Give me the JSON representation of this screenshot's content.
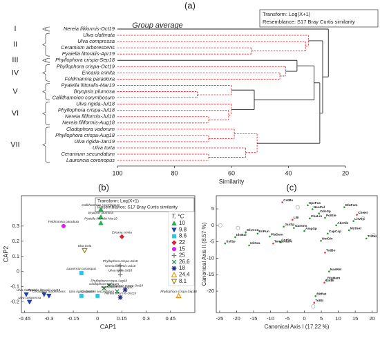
{
  "chart_data": [
    {
      "type": "dendrogram",
      "title": "(a)",
      "subtitle": "Group average",
      "annotations": [
        "Transform: Log(X+1)",
        "Resemblance: S17 Bray Curtis similarity"
      ],
      "xlabel": "Similarity",
      "xlim": [
        100,
        20
      ],
      "xticks": [
        100,
        80,
        60,
        40,
        20
      ],
      "leaves": [
        "Nereia filiformis-Oct19",
        "Ulva clathrata",
        "Ulva compressa",
        "Ceramium arborescens",
        "Pyaiella littoralis-Apr19",
        "Phyllophora crispa-Sep18",
        "Phyllophora crispa-Oct19",
        "Ericaria crinita",
        "Feldmannia paradoxa",
        "Pyaiella littoralis-Mar19",
        "Bryopsis plumosa",
        "Callithamnion corymbosum",
        "Ulva rigida-Jul18",
        "Phyllophora crispa-Jul18",
        "Nereia filiformis-Jul18",
        "Nereia filiformis-Aug18",
        "Cladophora vadorum",
        "Phyllophora crispa-Aug18",
        "Ulva rigida-Jan19",
        "Ulva torta",
        "Ceramium secundatum",
        "Laurencia coronopus"
      ],
      "groups": [
        {
          "label": "I",
          "first": 0,
          "last": 0
        },
        {
          "label": "II",
          "first": 1,
          "last": 4
        },
        {
          "label": "III",
          "first": 5,
          "last": 5
        },
        {
          "label": "IV",
          "first": 6,
          "last": 8
        },
        {
          "label": "V",
          "first": 9,
          "last": 11
        },
        {
          "label": "VI",
          "first": 12,
          "last": 15
        },
        {
          "label": "VII",
          "first": 16,
          "last": 21
        }
      ],
      "merges": [
        {
          "children": [
            3,
            4
          ],
          "similarity": 53,
          "color": "#e8333a",
          "dashed": true
        },
        {
          "children": [
            2,
            22
          ],
          "similarity": 34,
          "color": "#e8333a",
          "dashed": true
        },
        {
          "children": [
            1,
            23
          ],
          "similarity": 33,
          "color": "#e8333a",
          "dashed": true
        },
        {
          "children": [
            7,
            8
          ],
          "similarity": 43,
          "color": "#e8333a",
          "dashed": true
        },
        {
          "children": [
            6,
            25
          ],
          "similarity": 41,
          "color": "#e8333a",
          "dashed": true
        },
        {
          "children": [
            5,
            26
          ],
          "similarity": 37,
          "color": "#222222",
          "dashed": false
        },
        {
          "children": [
            10,
            11
          ],
          "similarity": 72,
          "color": "#e8333a",
          "dashed": true
        },
        {
          "children": [
            9,
            28
          ],
          "similarity": 60,
          "color": "#e8333a",
          "dashed": true
        },
        {
          "children": [
            14,
            15
          ],
          "similarity": 68,
          "color": "#e8333a",
          "dashed": true
        },
        {
          "children": [
            13,
            30
          ],
          "similarity": 61,
          "color": "#e8333a",
          "dashed": true
        },
        {
          "children": [
            12,
            31
          ],
          "similarity": 60,
          "color": "#e8333a",
          "dashed": true
        },
        {
          "children": [
            29,
            32
          ],
          "similarity": 52,
          "color": "#222222",
          "dashed": false
        },
        {
          "children": [
            27,
            33
          ],
          "similarity": 31,
          "color": "#222222",
          "dashed": false
        },
        {
          "children": [
            20,
            21
          ],
          "similarity": 68,
          "color": "#e8333a",
          "dashed": true
        },
        {
          "children": [
            19,
            35
          ],
          "similarity": 55,
          "color": "#e8333a",
          "dashed": true
        },
        {
          "children": [
            17,
            18
          ],
          "similarity": 68,
          "color": "#e8333a",
          "dashed": true
        },
        {
          "children": [
            16,
            37
          ],
          "similarity": 59,
          "color": "#e8333a",
          "dashed": true
        },
        {
          "children": [
            38,
            36
          ],
          "similarity": 51,
          "color": "#e8333a",
          "dashed": true
        },
        {
          "children": [
            34,
            39
          ],
          "similarity": 29,
          "color": "#222222",
          "dashed": false
        },
        {
          "children": [
            24,
            40
          ],
          "similarity": 28,
          "color": "#222222",
          "dashed": false
        },
        {
          "children": [
            0,
            41
          ],
          "similarity": 26,
          "color": "#222222",
          "dashed": false
        }
      ]
    },
    {
      "type": "scatter",
      "title": "(b)",
      "annotations": [
        "Transform: Log(X+1)",
        "Resemblance: S17 Bray Curtis similarity"
      ],
      "xlabel": "CAP1",
      "ylabel": "CAP2",
      "xlim": [
        -0.47,
        0.6
      ],
      "ylim": [
        -0.27,
        0.5
      ],
      "xticks": [
        -0.45,
        -0.3,
        -0.15,
        0,
        0.15,
        0.3,
        0.45
      ],
      "yticks": [
        -0.2,
        -0.1,
        0,
        0.1,
        0.2,
        0.3
      ],
      "legend_title": "T, °C",
      "series": [
        {
          "name": "10",
          "color": "#22b14c",
          "marker": "triangle-up",
          "x": [
            0.02,
            0.02,
            0.02
          ],
          "y": [
            0.41,
            0.36,
            0.32
          ],
          "labels": [
            "Callithamnion corymbosum",
            "Bryopsis plumosa",
            "Pyaiella littoralis-Mar19"
          ]
        },
        {
          "name": "9.8",
          "color": "#1f3fb0",
          "marker": "triangle-down",
          "x": [
            -0.44,
            -0.33,
            -0.3,
            -0.42
          ],
          "y": [
            -0.15,
            -0.15,
            -0.16,
            -0.2
          ],
          "labels": [
            "Ulva clathrata",
            "Pyaiella littoralis-Apr19",
            "Ceramium arborescens",
            "Ulva compressa"
          ]
        },
        {
          "name": "8.6",
          "color": "#25c8e8",
          "marker": "square",
          "x": [
            -0.1,
            -0.1,
            0.0
          ],
          "y": [
            -0.01,
            -0.16,
            -0.16
          ],
          "labels": [
            "Laurencia coronopus",
            "Ulva rigida-Jan19",
            "Ceramium secundatum"
          ]
        },
        {
          "name": "22",
          "color": "#e0202a",
          "marker": "diamond",
          "x": [
            0.15
          ],
          "y": [
            0.23
          ],
          "labels": [
            "Ericaria crinita"
          ]
        },
        {
          "name": "15",
          "color": "#e020e0",
          "marker": "circle",
          "x": [
            -0.21
          ],
          "y": [
            0.3
          ],
          "labels": [
            "Feldmannia paradoxa"
          ]
        },
        {
          "name": "25",
          "color": "#777777",
          "marker": "plus",
          "x": [
            0.14,
            0.14,
            0.14
          ],
          "y": [
            0.04,
            0.01,
            -0.02
          ],
          "labels": [
            "Phyllophora crispa-Jul18",
            "Nereia filiformis-Jul18",
            "Ulva rigida-Jul18"
          ]
        },
        {
          "name": "26.6",
          "color": "#1e8c3a",
          "marker": "cross",
          "x": [
            0.07,
            0.04,
            0.12
          ],
          "y": [
            -0.09,
            -0.11,
            -0.13
          ],
          "labels": [
            "Phyllophora crispa-Aug18",
            "Cladophora vadorum",
            "Nereia filiformis-Aug18"
          ]
        },
        {
          "name": "18",
          "color": "#1a237e",
          "marker": "asterisk",
          "x": [
            0.14,
            0.17
          ],
          "y": [
            -0.17,
            -0.12
          ],
          "labels": [
            "Nereia filiformis-Oct19",
            "Phyllophora crispa-Oct19"
          ]
        },
        {
          "name": "24.4",
          "color": "#f08a00",
          "marker": "triangle-up-open",
          "x": [
            0.5
          ],
          "y": [
            -0.16
          ],
          "labels": [
            "Phyllophora crispa-Sep18"
          ]
        },
        {
          "name": "8.1",
          "color": "#8a7a10",
          "marker": "triangle-down-open",
          "x": [
            -0.08
          ],
          "y": [
            0.14
          ],
          "labels": [
            "Ulva torta"
          ]
        }
      ]
    },
    {
      "type": "biplot",
      "title": "(c)",
      "xlabel": "Canonical Axis I (17.22 %)",
      "ylabel": "Canonical Axis II (8.57 %)",
      "xlim": [
        -26,
        21.5
      ],
      "ylim": [
        -26.5,
        9
      ],
      "xticks": [
        -25,
        -20,
        -15,
        -10,
        -5,
        0,
        5,
        10,
        15,
        20
      ],
      "yticks": [
        -20,
        -15,
        -10,
        -5,
        0,
        5
      ],
      "groups": [
        {
          "color": "#b0b0b0",
          "x": [
            -24.8,
            17.3,
            20.4,
            -19.6,
            2.6,
            -2.0
          ],
          "y": [
            0,
            2.1,
            -3,
            -0.8,
            -24.6,
            5.5
          ]
        },
        {
          "color": "#1e9e2e",
          "x": [
            1.0,
            2.4,
            4.3,
            1.6,
            6.1,
            11.8,
            14.5,
            13.2,
            9.4,
            6.9,
            4.9,
            0,
            -3.1,
            -6.1,
            -10.2,
            -13.8,
            -17.3,
            -20.4,
            -23.4,
            -16.3,
            -7.1,
            7.3,
            6.5,
            3.3,
            18.3
          ],
          "y": [
            6.1,
            4.9,
            3.6,
            2.1,
            2.3,
            5.5,
            1.3,
            -1.5,
            0,
            -2.5,
            -4.7,
            -1.7,
            -0.8,
            -0.4,
            -3.4,
            -2.5,
            -2.1,
            -3.6,
            -5.5,
            -6.1,
            -5.1,
            -14,
            -16.7,
            -21.5,
            -4
          ],
          "labels": [
            "SpeFas",
            "NeoPal",
            "OdoSp",
            "ChaLin",
            "PolEle",
            "BluFam",
            "LitVen",
            "MytGal",
            "AbrAlb",
            "CapCap",
            "NerDiv",
            "AmpSp",
            "GamIns",
            "JasSp",
            "PlaDum",
            "EriPun",
            "MicCon",
            "IdoBal",
            "SylSp",
            "HilGra",
            "CorSp",
            "NasRet",
            "RisMem",
            "BitRet",
            "TriPer"
          ]
        },
        {
          "color": "#e8333a",
          "x": [
            -6.5,
            -9.2,
            6.1,
            5.9,
            2.9,
            15.5,
            -3.5
          ],
          "y": [
            7,
            -5.5,
            -8.3,
            -17.4,
            -23.5,
            3.2,
            1.7
          ],
          "labels": [
            "CatBo",
            "Tempreture",
            "TotBo",
            "CatBi",
            "TotBi",
            "CheHi",
            "LBi"
          ]
        }
      ]
    }
  ]
}
